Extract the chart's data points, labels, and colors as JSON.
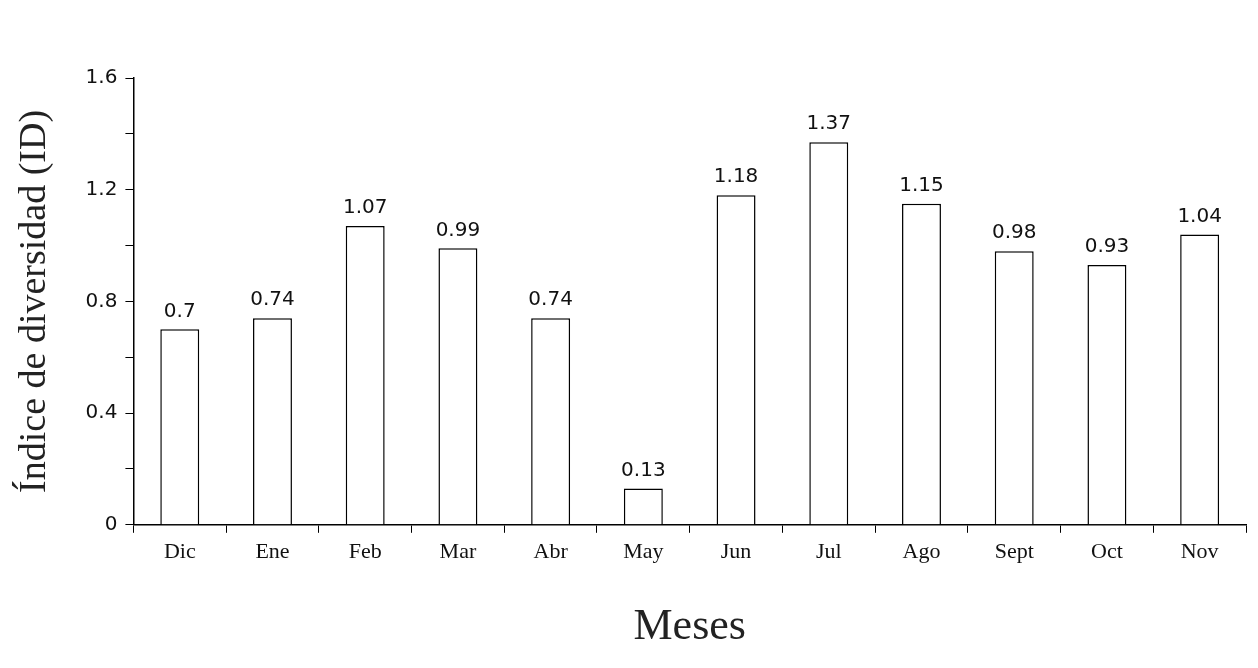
{
  "chart_data": {
    "type": "bar",
    "xlabel": "Meses",
    "ylabel": "Índice de diversidad (ID)",
    "categories": [
      "Dic",
      "Ene",
      "Feb",
      "Mar",
      "Abr",
      "May",
      "Jun",
      "Jul",
      "Ago",
      "Sept",
      "Oct",
      "Nov"
    ],
    "values": [
      0.7,
      0.74,
      1.07,
      0.99,
      0.74,
      0.13,
      1.18,
      1.37,
      1.15,
      0.98,
      0.93,
      1.04
    ],
    "color": "#ffffff",
    "ylim": [
      0,
      1.6
    ],
    "yticks": [
      0,
      {
        "value": 0.2,
        "label": null
      },
      0.4,
      {
        "value": 0.6,
        "label": null
      },
      0.8,
      {
        "value": 1.0,
        "label": null
      },
      1.2,
      {
        "value": 1.4,
        "label": null
      },
      1.6
    ],
    "data_labels": true,
    "grid": false,
    "legend": false
  }
}
